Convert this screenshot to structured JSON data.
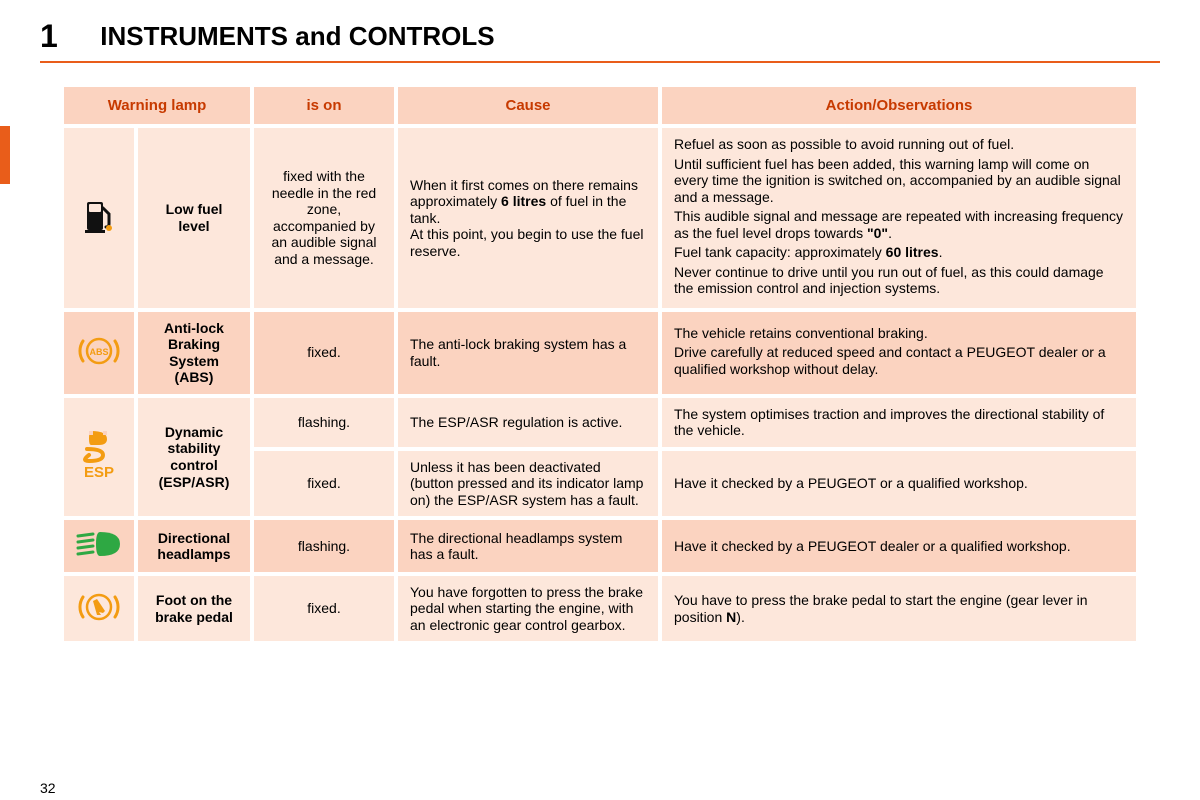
{
  "chapterNumber": "1",
  "title": "INSTRUMENTS and CONTROLS",
  "pageNumber": "32",
  "colors": {
    "accent": "#e95d1a",
    "headerBg": "#fbd3c0",
    "headerText": "#c73a00",
    "rowA": "#fde7db",
    "rowB": "#fbd3c0",
    "iconAmber": "#f39c12",
    "iconGreen": "#2ea843"
  },
  "columns": [
    "Warning lamp",
    "is on",
    "Cause",
    "Action/Observations"
  ],
  "rows": [
    {
      "icon": "fuel",
      "name": "Low fuel level",
      "isOn": "fixed with the needle in the red zone, accompanied by an audible signal and a message.",
      "cause": "When it first comes on there remains approximately <b>6 litres</b> of fuel in the tank.<br>At this point, you begin to use the fuel reserve.",
      "action": "<p>Refuel as soon as possible to avoid running out of fuel.</p><p>Until sufficient fuel has been added, this warning lamp will come on every time the ignition is switched on, accompanied by an audible signal and a message.</p><p>This audible signal and message are repeated with increasing frequency as the fuel level drops towards <b>\"0\"</b>.</p><p>Fuel tank capacity: approximately <b>60 litres</b>.</p><p>Never continue to drive until you run out of fuel, as this could damage the emission control and injection systems.</p>"
    },
    {
      "icon": "abs",
      "name": "Anti-lock Braking System (ABS)",
      "isOn": "fixed.",
      "cause": "The anti-lock braking system has a fault.",
      "action": "<p>The vehicle retains conventional braking.</p><p>Drive carefully at reduced speed and contact a PEUGEOT dealer or a qualified workshop without delay.</p>"
    },
    {
      "icon": "esp",
      "name": "Dynamic stability control (ESP/ASR)",
      "sub": [
        {
          "isOn": "flashing.",
          "cause": "The ESP/ASR regulation is active.",
          "action": "The system optimises traction and improves the directional stability of the vehicle."
        },
        {
          "isOn": "fixed.",
          "cause": "Unless it has been deactivated (button pressed and its indicator lamp on) the ESP/ASR system has a fault.",
          "action": "Have it checked by a PEUGEOT or a qualified workshop."
        }
      ]
    },
    {
      "icon": "headlamp",
      "name": "Directional headlamps",
      "isOn": "flashing.",
      "cause": "The directional headlamps system has a fault.",
      "action": "Have it checked by a PEUGEOT dealer or a qualified workshop."
    },
    {
      "icon": "brakefoot",
      "name": "Foot on the brake pedal",
      "isOn": "fixed.",
      "cause": "You have forgotten to press the brake pedal when starting the engine, with an electronic gear control gearbox.",
      "action": "You have to press the brake pedal to start the engine (gear lever in position <b>N</b>)."
    }
  ]
}
